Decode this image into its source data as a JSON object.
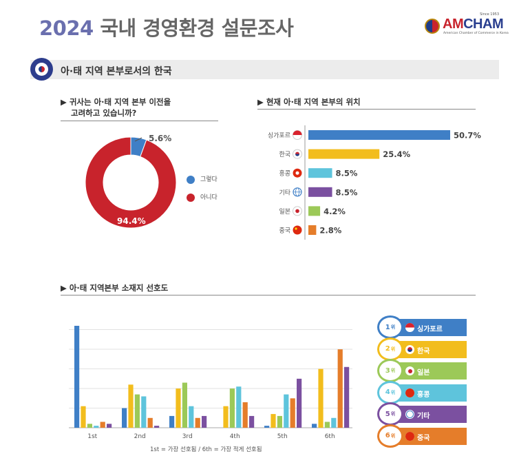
{
  "header": {
    "year": "2024",
    "title_rest": "국내 경영환경 설문조사",
    "logo": {
      "name_a": "AM",
      "name_b": "CHAM",
      "since": "Since 1953",
      "sub": "American Chamber of Commerce in Korea"
    }
  },
  "section": {
    "title": "아·태 지역 본부로서의 한국",
    "icon": "korea-taeguk-icon"
  },
  "colors": {
    "blue": "#3f7fc6",
    "yellow": "#f2bd1d",
    "cyan": "#5ec4dc",
    "purple": "#7b50a0",
    "green": "#9cc958",
    "orange": "#e57d2a",
    "red": "#c8232c",
    "navy": "#2c3c8c"
  },
  "donut": {
    "title_line1": "▶  귀사는 아·태 지역 본부 이전을",
    "title_line2": "고려하고 있습니까?",
    "labels": {
      "yes": "5.6%",
      "no": "94.4%"
    }
  },
  "location": {
    "title": "▶  현재 아·태 지역 본부의 위치"
  },
  "preference": {
    "title": "▶  아·태 지역본부 소재지 선호도",
    "footnote": "1st = 가장 선호됨  /  6th = 가장 적게 선호됨",
    "ranking": [
      {
        "rank": "1",
        "unit": "위",
        "label": "싱가포르",
        "flag": "singapore-flag-icon",
        "color": "#3f7fc6"
      },
      {
        "rank": "2",
        "unit": "위",
        "label": "한국",
        "flag": "korea-flag-icon",
        "color": "#f2bd1d"
      },
      {
        "rank": "3",
        "unit": "위",
        "label": "일본",
        "flag": "japan-flag-icon",
        "color": "#9cc958"
      },
      {
        "rank": "4",
        "unit": "위",
        "label": "홍콩",
        "flag": "hongkong-flag-icon",
        "color": "#5ec4dc"
      },
      {
        "rank": "5",
        "unit": "위",
        "label": "기타",
        "flag": "globe-icon",
        "color": "#7b50a0"
      },
      {
        "rank": "6",
        "unit": "위",
        "label": "중국",
        "flag": "china-flag-icon",
        "color": "#e57d2a"
      }
    ]
  },
  "chart_data": [
    {
      "type": "pie",
      "title": "귀사는 아·태 지역 본부 이전을 고려하고 있습니까?",
      "donut": true,
      "slices": [
        {
          "name": "그렇다",
          "value": 5.6,
          "color": "#3f7fc6"
        },
        {
          "name": "아니다",
          "value": 94.4,
          "color": "#c8232c"
        }
      ],
      "legend": "right"
    },
    {
      "type": "bar",
      "orientation": "horizontal",
      "title": "현재 아·태 지역 본부의 위치",
      "categories": [
        "싱가포르",
        "한국",
        "홍콩",
        "기타",
        "일본",
        "중국"
      ],
      "flags": [
        "singapore-flag-icon",
        "korea-flag-icon",
        "hongkong-flag-icon",
        "globe-icon",
        "japan-flag-icon",
        "china-flag-icon"
      ],
      "values": [
        50.7,
        25.4,
        8.5,
        8.5,
        4.2,
        2.8
      ],
      "labels": [
        "50.7%",
        "25.4%",
        "8.5%",
        "8.5%",
        "4.2%",
        "2.8%"
      ],
      "colors": [
        "#3f7fc6",
        "#f2bd1d",
        "#5ec4dc",
        "#7b50a0",
        "#9cc958",
        "#e57d2a"
      ],
      "xlim": [
        0,
        50.7
      ]
    },
    {
      "type": "bar",
      "title": "아·태 지역본부 소재지 선호도",
      "categories": [
        "1st",
        "2nd",
        "3rd",
        "4th",
        "5th",
        "6th"
      ],
      "series": [
        {
          "name": "싱가포르",
          "color": "#3f7fc6",
          "values": [
            52,
            10,
            6,
            0,
            1,
            2
          ]
        },
        {
          "name": "한국",
          "color": "#f2bd1d",
          "values": [
            11,
            22,
            20,
            11,
            7,
            30
          ]
        },
        {
          "name": "일본",
          "color": "#9cc958",
          "values": [
            2,
            17,
            23,
            20,
            6,
            3
          ]
        },
        {
          "name": "홍콩",
          "color": "#5ec4dc",
          "values": [
            1,
            16,
            11,
            21,
            17,
            5
          ]
        },
        {
          "name": "중국",
          "color": "#e57d2a",
          "values": [
            3,
            5,
            5,
            13,
            15,
            40
          ]
        },
        {
          "name": "기타",
          "color": "#7b50a0",
          "values": [
            2,
            1,
            6,
            6,
            25,
            31
          ]
        }
      ],
      "ylim": [
        0,
        52
      ],
      "grid": true
    }
  ]
}
